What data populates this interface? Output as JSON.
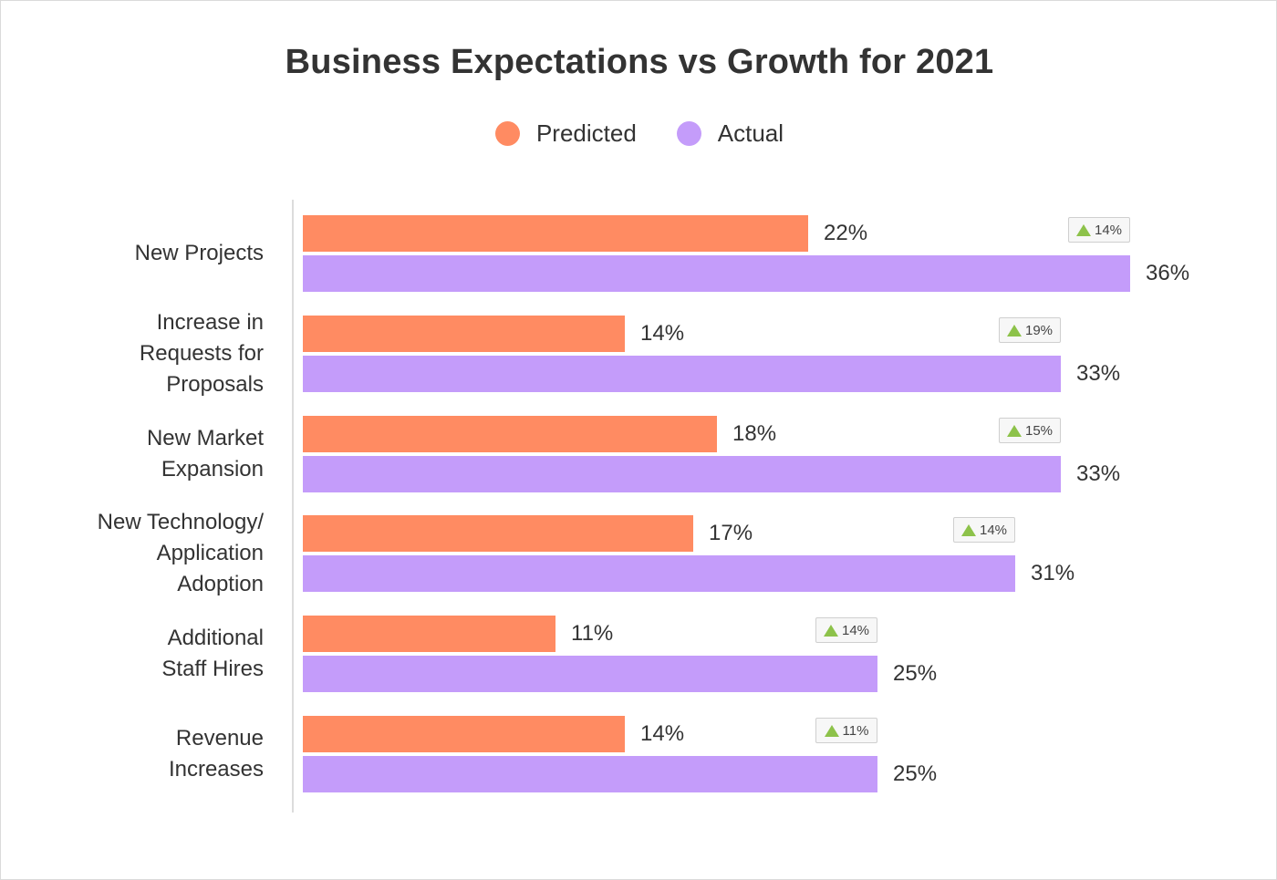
{
  "chart_data": {
    "type": "bar",
    "orientation": "horizontal",
    "title": "Business Expectations vs Growth for 2021",
    "legend_position": "top-center",
    "xlim": [
      0,
      36
    ],
    "grid": false,
    "categories": [
      "New Projects",
      "Increase in\nRequests for\nProposals",
      "New Market\nExpansion",
      "New Technology/\nApplication\nAdoption",
      "Additional\nStaff Hires",
      "Revenue\nIncreases"
    ],
    "series": [
      {
        "name": "Predicted",
        "color": "#ff8b62",
        "values": [
          22,
          14,
          18,
          17,
          11,
          14
        ]
      },
      {
        "name": "Actual",
        "color": "#c49cfa",
        "values": [
          36,
          33,
          33,
          31,
          25,
          25
        ]
      }
    ],
    "value_labels": {
      "Predicted": [
        "22%",
        "14%",
        "18%",
        "17%",
        "11%",
        "14%"
      ],
      "Actual": [
        "36%",
        "33%",
        "33%",
        "31%",
        "25%",
        "25%"
      ]
    },
    "difference_badges": [
      "14%",
      "19%",
      "15%",
      "14%",
      "14%",
      "11%"
    ],
    "badge_icon": "up-triangle-icon",
    "badge_icon_color": "#8dc24a"
  }
}
